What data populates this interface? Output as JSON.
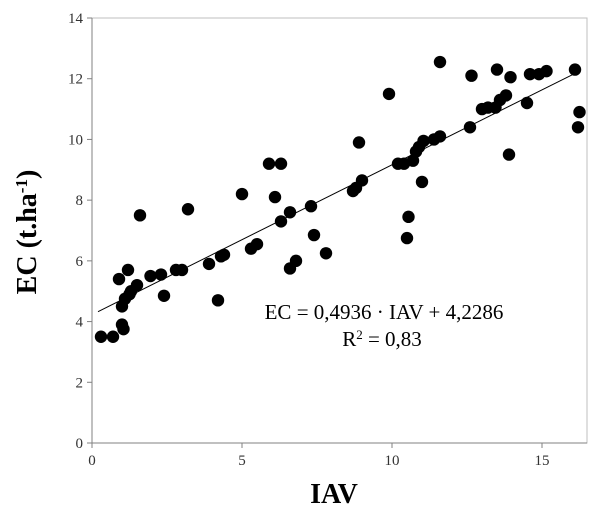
{
  "chart_data": {
    "type": "scatter",
    "xlabel": "IAV",
    "ylabel_main": "EC (t.ha",
    "ylabel_sup": "-1",
    "ylabel_close": ")",
    "xlim": [
      0,
      16.5
    ],
    "ylim": [
      0,
      14
    ],
    "xticks": [
      0,
      5,
      10,
      15
    ],
    "yticks": [
      0,
      2,
      4,
      6,
      8,
      10,
      12,
      14
    ],
    "grid": false,
    "legend": "none",
    "marker_color": "#000000",
    "trendline": {
      "slope": 0.4936,
      "intercept": 4.2286,
      "x_range": [
        0.2,
        16.2
      ]
    },
    "annotations": {
      "equation": "EC = 0,4936 · IAV + 4,2286",
      "r2_label": "R",
      "r2_sup": "2",
      "r2_value": " = 0,83"
    },
    "points": [
      [
        0.3,
        3.5
      ],
      [
        0.7,
        3.5
      ],
      [
        0.9,
        5.4
      ],
      [
        1.0,
        3.9
      ],
      [
        1.0,
        4.5
      ],
      [
        1.05,
        3.75
      ],
      [
        1.1,
        4.75
      ],
      [
        1.2,
        5.7
      ],
      [
        1.25,
        4.9
      ],
      [
        1.3,
        5.0
      ],
      [
        1.5,
        5.2
      ],
      [
        1.6,
        7.5
      ],
      [
        1.95,
        5.5
      ],
      [
        2.3,
        5.55
      ],
      [
        2.4,
        4.85
      ],
      [
        2.8,
        5.7
      ],
      [
        3.0,
        5.7
      ],
      [
        3.2,
        7.7
      ],
      [
        3.9,
        5.9
      ],
      [
        4.2,
        4.7
      ],
      [
        4.3,
        6.15
      ],
      [
        4.4,
        6.2
      ],
      [
        5.0,
        8.2
      ],
      [
        5.3,
        6.4
      ],
      [
        5.5,
        6.55
      ],
      [
        5.9,
        9.2
      ],
      [
        6.1,
        8.1
      ],
      [
        6.3,
        9.2
      ],
      [
        6.3,
        7.3
      ],
      [
        6.6,
        5.75
      ],
      [
        6.6,
        7.6
      ],
      [
        6.8,
        6.0
      ],
      [
        7.3,
        7.8
      ],
      [
        7.4,
        6.85
      ],
      [
        7.8,
        6.25
      ],
      [
        8.7,
        8.3
      ],
      [
        8.8,
        8.4
      ],
      [
        8.9,
        9.9
      ],
      [
        9.0,
        8.65
      ],
      [
        9.9,
        11.5
      ],
      [
        10.2,
        9.2
      ],
      [
        10.4,
        9.2
      ],
      [
        10.5,
        6.75
      ],
      [
        10.55,
        7.45
      ],
      [
        10.7,
        9.3
      ],
      [
        10.8,
        9.6
      ],
      [
        10.9,
        9.75
      ],
      [
        11.0,
        8.6
      ],
      [
        11.05,
        9.95
      ],
      [
        11.4,
        10.0
      ],
      [
        11.6,
        10.1
      ],
      [
        11.6,
        12.55
      ],
      [
        12.6,
        10.4
      ],
      [
        12.65,
        12.1
      ],
      [
        13.0,
        11.0
      ],
      [
        13.2,
        11.05
      ],
      [
        13.45,
        11.05
      ],
      [
        13.5,
        12.3
      ],
      [
        13.6,
        11.3
      ],
      [
        13.8,
        11.45
      ],
      [
        13.9,
        9.5
      ],
      [
        13.95,
        12.05
      ],
      [
        14.5,
        11.2
      ],
      [
        14.6,
        12.15
      ],
      [
        14.9,
        12.15
      ],
      [
        15.15,
        12.25
      ],
      [
        16.1,
        12.3
      ],
      [
        16.2,
        10.4
      ],
      [
        16.25,
        10.9
      ]
    ]
  }
}
